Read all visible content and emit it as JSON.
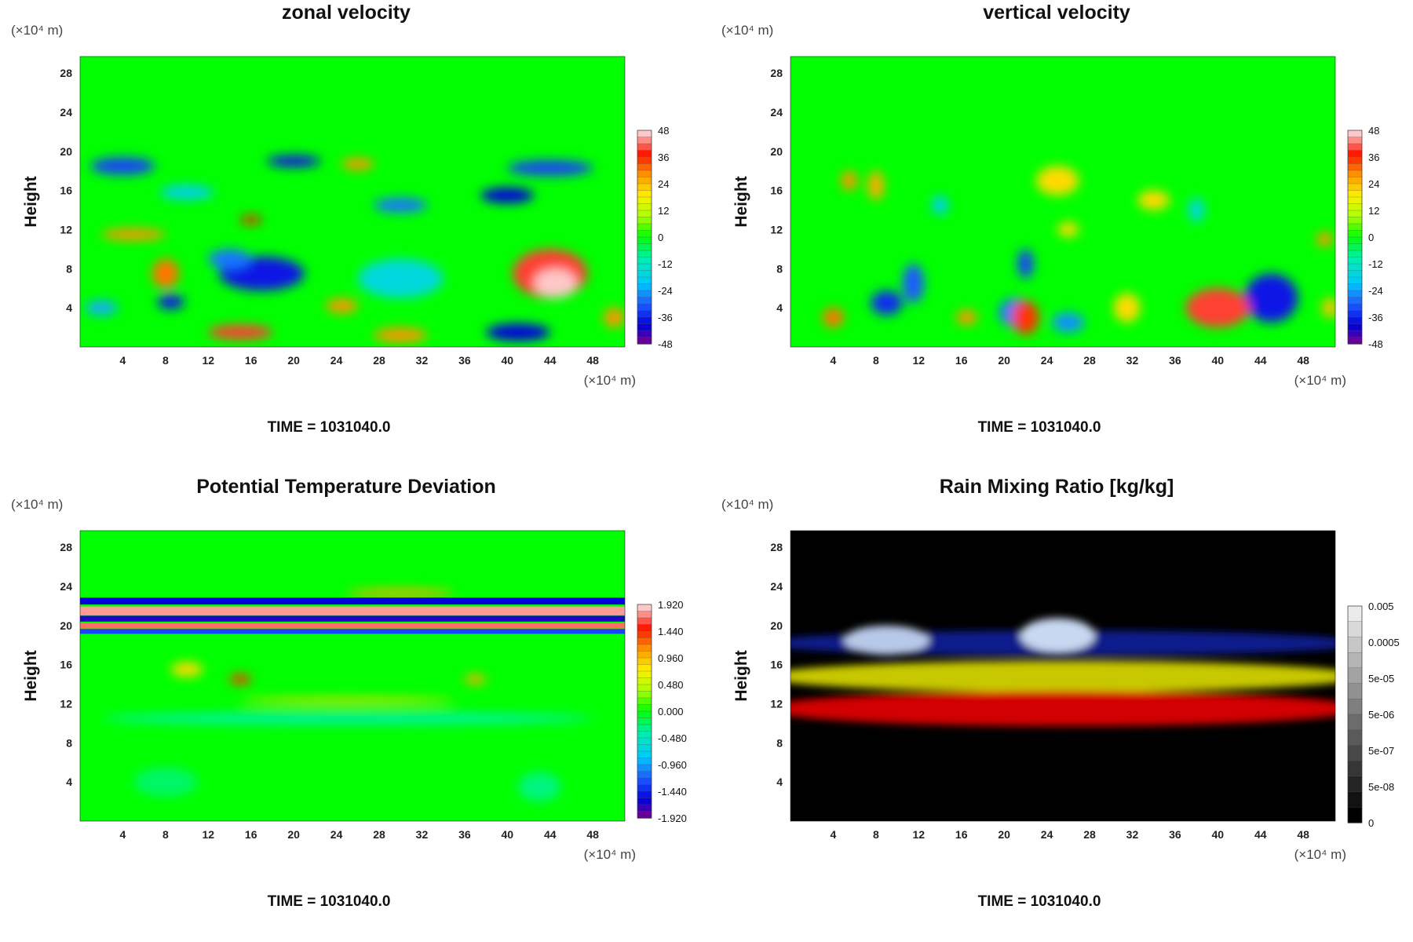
{
  "chart_data": [
    {
      "type": "heatmap",
      "title": "zonal velocity",
      "ylabel": "Height",
      "x_unit": "(×10⁴ m)",
      "y_unit": "(×10⁴ m)",
      "time_label": "TIME = 1031040.0",
      "xlim": [
        0,
        51
      ],
      "ylim": [
        0,
        29.7
      ],
      "xticks": [
        "4",
        "8",
        "12",
        "16",
        "20",
        "24",
        "28",
        "32",
        "36",
        "40",
        "44",
        "48"
      ],
      "yticks": [
        "4",
        "8",
        "12",
        "16",
        "20",
        "24",
        "28"
      ],
      "colorbar": {
        "labels": [
          "48",
          "36",
          "24",
          "12",
          "0",
          "-12",
          "-24",
          "-36",
          "-48"
        ],
        "colormap": "rainbow"
      },
      "background_color": "#00ff00",
      "features": [
        {
          "x": 4,
          "y": 18.5,
          "w": 6,
          "h": 1.8,
          "v": -0.7
        },
        {
          "x": 20,
          "y": 19,
          "w": 5,
          "h": 1.2,
          "v": -0.8
        },
        {
          "x": 26,
          "y": 18.7,
          "w": 3,
          "h": 1.2,
          "v": 0.6
        },
        {
          "x": 44,
          "y": 18.3,
          "w": 8,
          "h": 1.6,
          "v": -0.7
        },
        {
          "x": 40,
          "y": 15.5,
          "w": 5,
          "h": 1.6,
          "v": -0.85
        },
        {
          "x": 30,
          "y": 14.5,
          "w": 5,
          "h": 1.5,
          "v": -0.6
        },
        {
          "x": 10,
          "y": 15.8,
          "w": 5,
          "h": 1.5,
          "v": -0.4
        },
        {
          "x": 5,
          "y": 11.5,
          "w": 6,
          "h": 1.2,
          "v": 0.6
        },
        {
          "x": 16,
          "y": 13,
          "w": 2,
          "h": 0.8,
          "v": 0.8
        },
        {
          "x": 17,
          "y": 7.5,
          "w": 8,
          "h": 3.5,
          "v": -0.8
        },
        {
          "x": 14,
          "y": 9,
          "w": 4,
          "h": 2,
          "v": -0.6
        },
        {
          "x": 8.5,
          "y": 4.6,
          "w": 2.5,
          "h": 1.5,
          "v": -0.8
        },
        {
          "x": 8,
          "y": 7.5,
          "w": 2.5,
          "h": 3,
          "v": 0.65
        },
        {
          "x": 44,
          "y": 7.5,
          "w": 7,
          "h": 5,
          "v": 0.85
        },
        {
          "x": 44.5,
          "y": 6.5,
          "w": 4,
          "h": 3,
          "v": 1.0
        },
        {
          "x": 41,
          "y": 1.5,
          "w": 6,
          "h": 1.8,
          "v": -0.85
        },
        {
          "x": 15,
          "y": 1.5,
          "w": 6,
          "h": 1.5,
          "v": 0.85
        },
        {
          "x": 30,
          "y": 1.2,
          "w": 5,
          "h": 1.5,
          "v": 0.6
        },
        {
          "x": 24.5,
          "y": 4.2,
          "w": 3,
          "h": 1.5,
          "v": 0.6
        },
        {
          "x": 30,
          "y": 7,
          "w": 8,
          "h": 4,
          "v": -0.35
        },
        {
          "x": 2,
          "y": 4,
          "w": 3,
          "h": 1.5,
          "v": -0.5
        },
        {
          "x": 50,
          "y": 3,
          "w": 2,
          "h": 2,
          "v": 0.6
        }
      ]
    },
    {
      "type": "heatmap",
      "title": "vertical velocity",
      "ylabel": "Height",
      "x_unit": "(×10⁴ m)",
      "y_unit": "(×10⁴ m)",
      "time_label": "TIME = 1031040.0",
      "xlim": [
        0,
        51
      ],
      "ylim": [
        0,
        29.7
      ],
      "xticks": [
        "4",
        "8",
        "12",
        "16",
        "20",
        "24",
        "28",
        "32",
        "36",
        "40",
        "44",
        "48"
      ],
      "yticks": [
        "4",
        "8",
        "12",
        "16",
        "20",
        "24",
        "28"
      ],
      "colorbar": {
        "labels": [
          "48",
          "36",
          "24",
          "12",
          "0",
          "-12",
          "-24",
          "-36",
          "-48"
        ],
        "colormap": "rainbow"
      },
      "background_color": "#00ff00",
      "features": [
        {
          "x": 9,
          "y": 4.5,
          "w": 3,
          "h": 2.5,
          "v": -0.75
        },
        {
          "x": 11.5,
          "y": 6.5,
          "w": 2,
          "h": 4,
          "v": -0.65
        },
        {
          "x": 21,
          "y": 3.5,
          "w": 3,
          "h": 3,
          "v": -0.6
        },
        {
          "x": 22,
          "y": 8.5,
          "w": 1.5,
          "h": 3,
          "v": -0.7
        },
        {
          "x": 26,
          "y": 2.5,
          "w": 3,
          "h": 2,
          "v": -0.55
        },
        {
          "x": 45,
          "y": 5,
          "w": 5,
          "h": 5,
          "v": -0.8
        },
        {
          "x": 4,
          "y": 3,
          "w": 2,
          "h": 2,
          "v": 0.65
        },
        {
          "x": 16.5,
          "y": 3,
          "w": 2,
          "h": 1.5,
          "v": 0.6
        },
        {
          "x": 22,
          "y": 3,
          "w": 2.5,
          "h": 3.5,
          "v": 0.75
        },
        {
          "x": 31.5,
          "y": 4,
          "w": 2.5,
          "h": 3,
          "v": 0.45
        },
        {
          "x": 40,
          "y": 4,
          "w": 6,
          "h": 4,
          "v": 0.85
        },
        {
          "x": 50.5,
          "y": 4,
          "w": 1.5,
          "h": 2,
          "v": 0.5
        },
        {
          "x": 5.5,
          "y": 17,
          "w": 1.5,
          "h": 2,
          "v": 0.6
        },
        {
          "x": 8,
          "y": 16.5,
          "w": 1.5,
          "h": 3,
          "v": 0.55
        },
        {
          "x": 25,
          "y": 17,
          "w": 4,
          "h": 3,
          "v": 0.45
        },
        {
          "x": 34,
          "y": 15,
          "w": 3,
          "h": 2,
          "v": 0.45
        },
        {
          "x": 14,
          "y": 14.5,
          "w": 1.5,
          "h": 2,
          "v": -0.4
        },
        {
          "x": 38,
          "y": 14,
          "w": 1.5,
          "h": 2.5,
          "v": -0.35
        },
        {
          "x": 50,
          "y": 11,
          "w": 1.5,
          "h": 1.5,
          "v": 0.6
        },
        {
          "x": 26,
          "y": 12,
          "w": 2,
          "h": 1.5,
          "v": 0.45
        }
      ]
    },
    {
      "type": "heatmap",
      "title": "Potential Temperature Deviation",
      "ylabel": "Height",
      "x_unit": "(×10⁴ m)",
      "y_unit": "(×10⁴ m)",
      "time_label": "TIME = 1031040.0",
      "xlim": [
        0,
        51
      ],
      "ylim": [
        0,
        29.7
      ],
      "xticks": [
        "4",
        "8",
        "12",
        "16",
        "20",
        "24",
        "28",
        "32",
        "36",
        "40",
        "44",
        "48"
      ],
      "yticks": [
        "4",
        "8",
        "12",
        "16",
        "20",
        "24",
        "28"
      ],
      "colorbar": {
        "labels": [
          "1.920",
          "1.440",
          "0.960",
          "0.480",
          "0.000",
          "-0.480",
          "-0.960",
          "-1.440",
          "-1.920"
        ],
        "colormap": "rainbow"
      },
      "background_color": "#00ff00",
      "bands": [
        {
          "y": 22.5,
          "h": 0.7,
          "v": -0.85
        },
        {
          "y": 21.5,
          "h": 0.9,
          "v": 0.95
        },
        {
          "y": 20.7,
          "h": 0.6,
          "v": -0.9
        },
        {
          "y": 20.0,
          "h": 0.6,
          "v": 0.9
        },
        {
          "y": 19.4,
          "h": 0.5,
          "v": -0.7
        }
      ],
      "features": [
        {
          "x": 30,
          "y": 23.3,
          "w": 10,
          "h": 0.8,
          "v": 0.55
        },
        {
          "x": 15,
          "y": 14.5,
          "w": 2,
          "h": 1,
          "v": 0.75
        },
        {
          "x": 10,
          "y": 15.5,
          "w": 3,
          "h": 1.5,
          "v": 0.45
        },
        {
          "x": 37,
          "y": 14.5,
          "w": 2,
          "h": 1,
          "v": 0.55
        },
        {
          "x": 25,
          "y": 12.3,
          "w": 20,
          "h": 0.6,
          "v": 0.45
        },
        {
          "x": 25,
          "y": 10.5,
          "w": 46,
          "h": 1.2,
          "v": -0.2
        },
        {
          "x": 8,
          "y": 4,
          "w": 6,
          "h": 3,
          "v": -0.12
        },
        {
          "x": 43,
          "y": 3.5,
          "w": 4,
          "h": 3,
          "v": -0.15
        }
      ]
    },
    {
      "type": "heatmap",
      "title": "Rain Mixing Ratio [kg/kg]",
      "ylabel": "Height",
      "x_unit": "(×10⁴ m)",
      "y_unit": "(×10⁴ m)",
      "time_label": "TIME = 1031040.0",
      "xlim": [
        0,
        51
      ],
      "ylim": [
        0,
        29.7
      ],
      "xticks": [
        "4",
        "8",
        "12",
        "16",
        "20",
        "24",
        "28",
        "32",
        "36",
        "40",
        "44",
        "48"
      ],
      "yticks": [
        "4",
        "8",
        "12",
        "16",
        "20",
        "24",
        "28"
      ],
      "colorbar": {
        "labels": [
          "0.005",
          "0.0005",
          "5e-05",
          "5e-06",
          "5e-07",
          "5e-08",
          "0"
        ],
        "colormap": "grayscale"
      },
      "background_color": "#000000",
      "layers": [
        {
          "y": 18.2,
          "h": 2.6,
          "color": "#0a1a8c"
        },
        {
          "y": 14.8,
          "h": 3.2,
          "color": "#c8c800"
        },
        {
          "y": 11.5,
          "h": 3.6,
          "color": "#d20000"
        }
      ],
      "caps": [
        {
          "x": 9,
          "y": 18.5,
          "w": 8,
          "h": 3,
          "color": "#b8c8e8"
        },
        {
          "x": 25,
          "y": 19,
          "w": 7,
          "h": 3.5,
          "color": "#c8d8f0"
        }
      ]
    }
  ]
}
